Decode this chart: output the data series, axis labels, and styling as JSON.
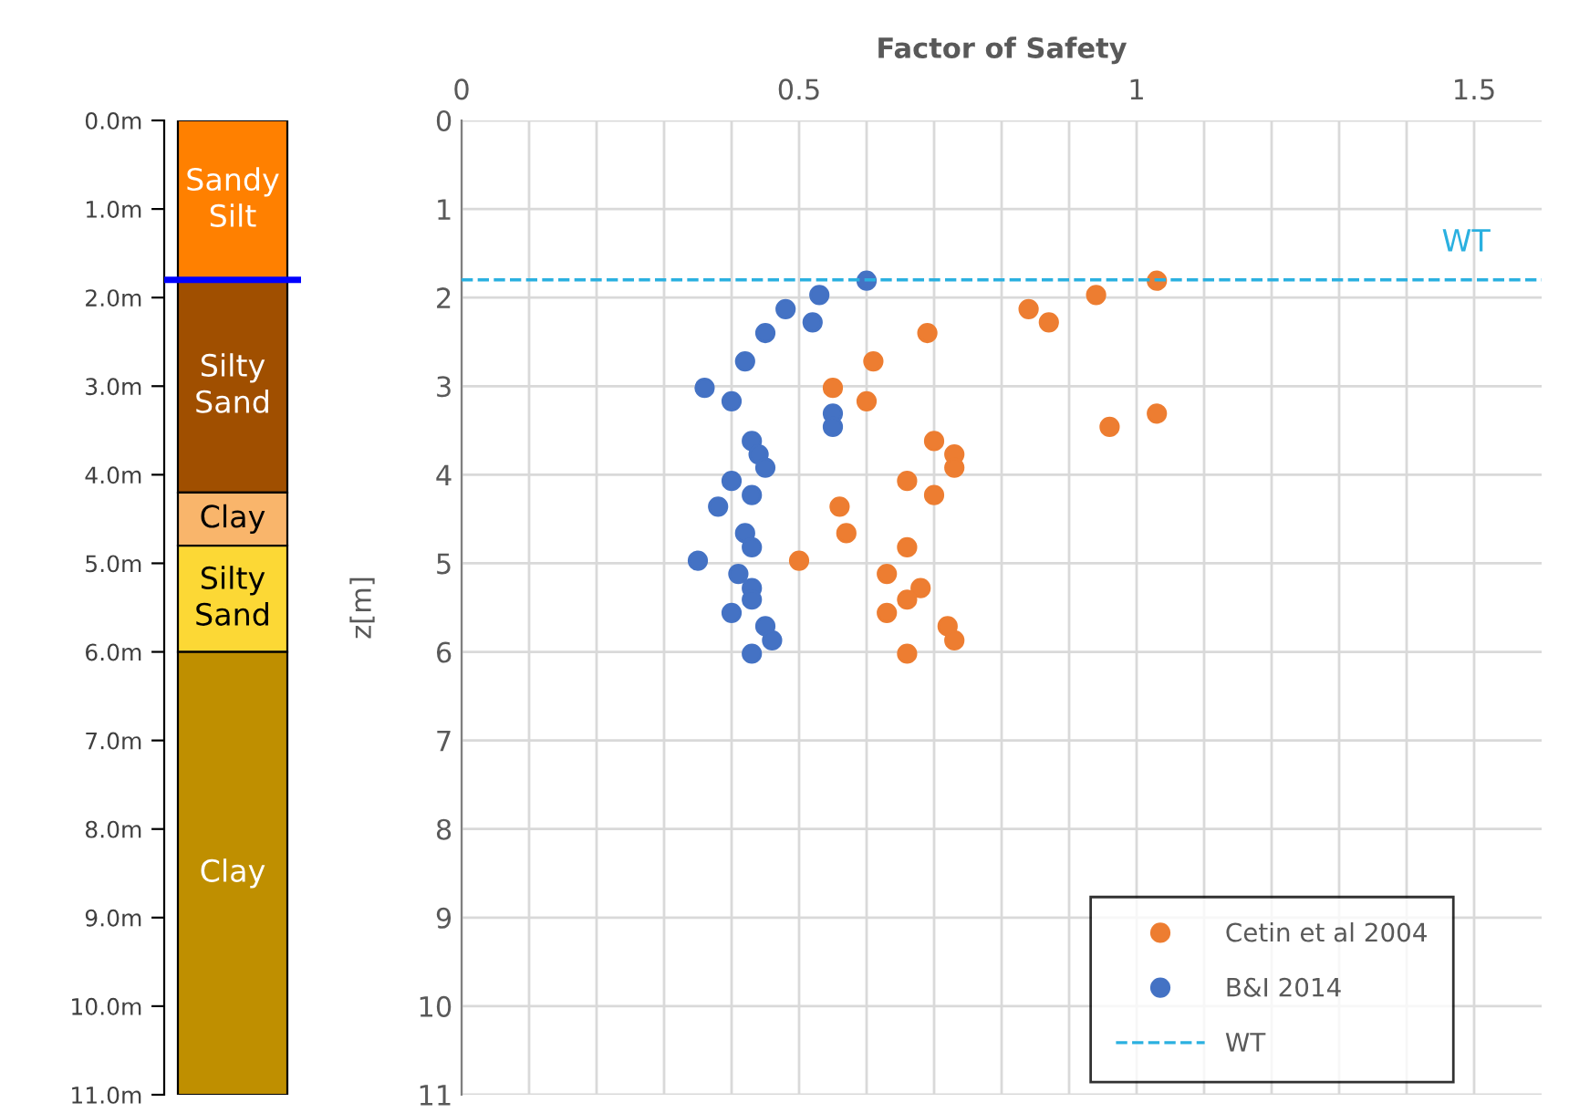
{
  "chart_data": [
    {
      "type": "bar",
      "stacked": true,
      "categories": [
        null
      ],
      "ylim": [
        11,
        0
      ],
      "yticks": [
        {
          "value": 0,
          "label": "0.0m"
        },
        {
          "value": 1,
          "label": "1.0m"
        },
        {
          "value": 2,
          "label": "2.0m"
        },
        {
          "value": 3,
          "label": "3.0m"
        },
        {
          "value": 4,
          "label": "4.0m"
        },
        {
          "value": 5,
          "label": "5.0m"
        },
        {
          "value": 6,
          "label": "6.0m"
        },
        {
          "value": 7,
          "label": "7.0m"
        },
        {
          "value": 8,
          "label": "8.0m"
        },
        {
          "value": 9,
          "label": "9.0m"
        },
        {
          "value": 10,
          "label": "10.0m"
        },
        {
          "value": 11,
          "label": "11.0m"
        }
      ],
      "tick_labels": "y",
      "grid": false,
      "legend": false,
      "ref_lines": [
        {
          "axis": "y",
          "value": 1.8,
          "color": "#0000ff",
          "line_style": "solid"
        }
      ],
      "series": [
        {
          "name": "Sandy Silt",
          "color": "#ff8000",
          "values": [
            1.8
          ]
        },
        {
          "name": "Silty Sand",
          "color": "#a04f00",
          "values": [
            2.4
          ]
        },
        {
          "name": "Clay",
          "color": "#f9b56b",
          "values": [
            0.6
          ]
        },
        {
          "name": "Silty Sand",
          "color": "#fcd835",
          "values": [
            1.2
          ]
        },
        {
          "name": "Clay",
          "color": "#bf8f00",
          "values": [
            5.0
          ]
        }
      ]
    },
    {
      "type": "scatter",
      "xlabel": "Factor of Safety",
      "ylabel": "z[m]",
      "xlim": [
        0,
        1.6
      ],
      "ylim": [
        11,
        0
      ],
      "xticks": [
        0,
        {
          "value": 0.1,
          "label": null
        },
        {
          "value": 0.2,
          "label": null
        },
        {
          "value": 0.3,
          "label": null
        },
        {
          "value": 0.4,
          "label": null
        },
        0.5,
        {
          "value": 0.6,
          "label": null
        },
        {
          "value": 0.7,
          "label": null
        },
        {
          "value": 0.8,
          "label": null
        },
        {
          "value": 0.9,
          "label": null
        },
        1,
        {
          "value": 1.1,
          "label": null
        },
        {
          "value": 1.2,
          "label": null
        },
        {
          "value": 1.3,
          "label": null
        },
        {
          "value": 1.4,
          "label": null
        },
        1.5
      ],
      "yticks": [
        0,
        1,
        2,
        3,
        4,
        5,
        6,
        7,
        8,
        9,
        10,
        11
      ],
      "grid": true,
      "legend": "bottom right",
      "marker": "circle",
      "ref_lines": [
        {
          "axis": "y",
          "value": 1.8,
          "label": "WT",
          "color": "#2ab0e0",
          "line_style": "dashed"
        }
      ],
      "series": [
        {
          "name": "Cetin et al 2004",
          "color": "#ed7d31",
          "x": [
            1.03,
            0.94,
            0.84,
            0.87,
            0.69,
            0.61,
            0.55,
            0.6,
            1.03,
            0.96,
            0.7,
            0.73,
            0.73,
            0.66,
            0.7,
            0.56,
            0.57,
            0.66,
            0.5,
            0.63,
            0.68,
            0.66,
            0.63,
            0.72,
            0.73,
            0.66
          ],
          "values": [
            1.81,
            1.97,
            2.13,
            2.28,
            2.4,
            2.72,
            3.02,
            3.17,
            3.31,
            3.46,
            3.62,
            3.77,
            3.92,
            4.07,
            4.23,
            4.36,
            4.66,
            4.82,
            4.97,
            5.12,
            5.28,
            5.41,
            5.56,
            5.71,
            5.87,
            6.02
          ]
        },
        {
          "name": "B&I 2014",
          "color": "#4472c4",
          "x": [
            0.6,
            0.53,
            0.48,
            0.52,
            0.45,
            0.42,
            0.36,
            0.4,
            0.55,
            0.55,
            0.43,
            0.44,
            0.45,
            0.4,
            0.43,
            0.38,
            0.42,
            0.43,
            0.35,
            0.41,
            0.43,
            0.43,
            0.4,
            0.45,
            0.46,
            0.43
          ],
          "values": [
            1.81,
            1.97,
            2.13,
            2.28,
            2.4,
            2.72,
            3.02,
            3.17,
            3.31,
            3.46,
            3.62,
            3.77,
            3.92,
            4.07,
            4.23,
            4.36,
            4.66,
            4.82,
            4.97,
            5.12,
            5.28,
            5.41,
            5.56,
            5.71,
            5.87,
            6.02
          ]
        }
      ]
    }
  ]
}
